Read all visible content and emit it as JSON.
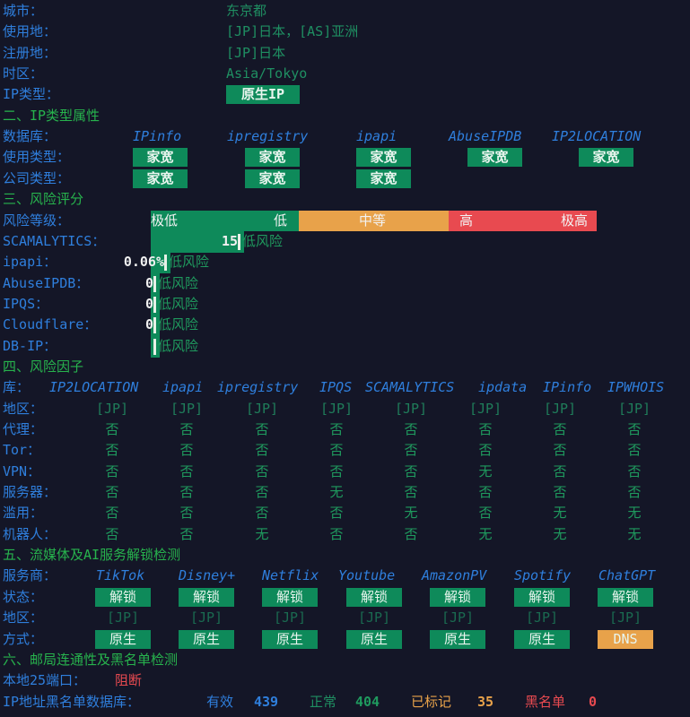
{
  "colors": {
    "background": "#141627",
    "label": "#2f7fdd",
    "header": "#27b34d",
    "value": "#1f8f62",
    "badge": "#0e8a5a",
    "warning": "#e8a24a",
    "danger": "#e84a50"
  },
  "basic": [
    {
      "label": "城市：",
      "value": "东京都"
    },
    {
      "label": "使用地：",
      "value": "[JP]日本，[AS]亚洲"
    },
    {
      "label": "注册地：",
      "value": "[JP]日本"
    },
    {
      "label": "时区：",
      "value": "Asia/Tokyo"
    }
  ],
  "ip_type": {
    "label": "IP类型：",
    "badge": "原生IP"
  },
  "section2": {
    "title": "二、IP类型属性",
    "db_label": "数据库：",
    "usage_label": "使用类型：",
    "company_label": "公司类型：",
    "databases": [
      {
        "name": "IPinfo",
        "usage": "家宽",
        "company": "家宽"
      },
      {
        "name": "ipregistry",
        "usage": "家宽",
        "company": "家宽"
      },
      {
        "name": "ipapi",
        "usage": "家宽",
        "company": "家宽"
      },
      {
        "name": "AbuseIPDB",
        "usage": "家宽",
        "company": ""
      },
      {
        "name": "IP2LOCATION",
        "usage": "家宽",
        "company": ""
      }
    ]
  },
  "section3": {
    "title": "三、风险评分",
    "level_label": "风险等级：",
    "levels": [
      "极低",
      "低",
      "中等",
      "高",
      "极高"
    ],
    "scores": [
      {
        "label": "SCAMALYTICS：",
        "score": "15",
        "verdict": "低风险"
      },
      {
        "label": "ipapi：",
        "score": "0.06%",
        "verdict": "低风险"
      },
      {
        "label": "AbuseIPDB：",
        "score": "0",
        "verdict": "低风险"
      },
      {
        "label": "IPQS：",
        "score": "0",
        "verdict": "低风险"
      },
      {
        "label": "Cloudflare：",
        "score": "0",
        "verdict": "低风险"
      },
      {
        "label": "DB-IP：",
        "score": "",
        "verdict": "低风险"
      }
    ]
  },
  "section4": {
    "title": "四、风险因子",
    "db_label": "库：",
    "databases": [
      "IP2LOCATION",
      "ipapi",
      "ipregistry",
      "IPQS",
      "SCAMALYTICS",
      "ipdata",
      "IPinfo",
      "IPWHOIS"
    ],
    "rows": [
      {
        "label": "地区：",
        "values": [
          "[JP]",
          "[JP]",
          "[JP]",
          "[JP]",
          "[JP]",
          "[JP]",
          "[JP]",
          "[JP]"
        ]
      },
      {
        "label": "代理：",
        "values": [
          "否",
          "否",
          "否",
          "否",
          "否",
          "否",
          "否",
          "否"
        ]
      },
      {
        "label": "Tor：",
        "values": [
          "否",
          "否",
          "否",
          "否",
          "否",
          "否",
          "否",
          "否"
        ]
      },
      {
        "label": "VPN：",
        "values": [
          "否",
          "否",
          "否",
          "否",
          "否",
          "无",
          "否",
          "否"
        ]
      },
      {
        "label": "服务器：",
        "values": [
          "否",
          "否",
          "否",
          "无",
          "否",
          "否",
          "否",
          "否"
        ]
      },
      {
        "label": "滥用：",
        "values": [
          "否",
          "否",
          "否",
          "否",
          "无",
          "否",
          "无",
          "无"
        ]
      },
      {
        "label": "机器人：",
        "values": [
          "否",
          "否",
          "无",
          "否",
          "否",
          "无",
          "无",
          "无"
        ]
      }
    ]
  },
  "section5": {
    "title": "五、流媒体及AI服务解锁检测",
    "provider_label": "服务商：",
    "status_label": "状态：",
    "region_label": "地区：",
    "method_label": "方式：",
    "services": [
      {
        "name": "TikTok",
        "status": "解锁",
        "region": "[JP]",
        "method": "原生"
      },
      {
        "name": "Disney+",
        "status": "解锁",
        "region": "[JP]",
        "method": "原生"
      },
      {
        "name": "Netflix",
        "status": "解锁",
        "region": "[JP]",
        "method": "原生"
      },
      {
        "name": "Youtube",
        "status": "解锁",
        "region": "[JP]",
        "method": "原生"
      },
      {
        "name": "AmazonPV",
        "status": "解锁",
        "region": "[JP]",
        "method": "原生"
      },
      {
        "name": "Spotify",
        "status": "解锁",
        "region": "[JP]",
        "method": "原生"
      },
      {
        "name": "ChatGPT",
        "status": "解锁",
        "region": "[JP]",
        "method": "DNS"
      }
    ]
  },
  "section6": {
    "title": "六、邮局连通性及黑名单检测",
    "port_label": "本地25端口：",
    "port_status": "阻断",
    "blacklist_label": "IP地址黑名单数据库：",
    "valid_label": "有效",
    "valid": "439",
    "normal_label": "正常",
    "normal": "404",
    "marked_label": "已标记",
    "marked": "35",
    "blacklisted_label": "黑名单",
    "blacklisted": "0"
  }
}
